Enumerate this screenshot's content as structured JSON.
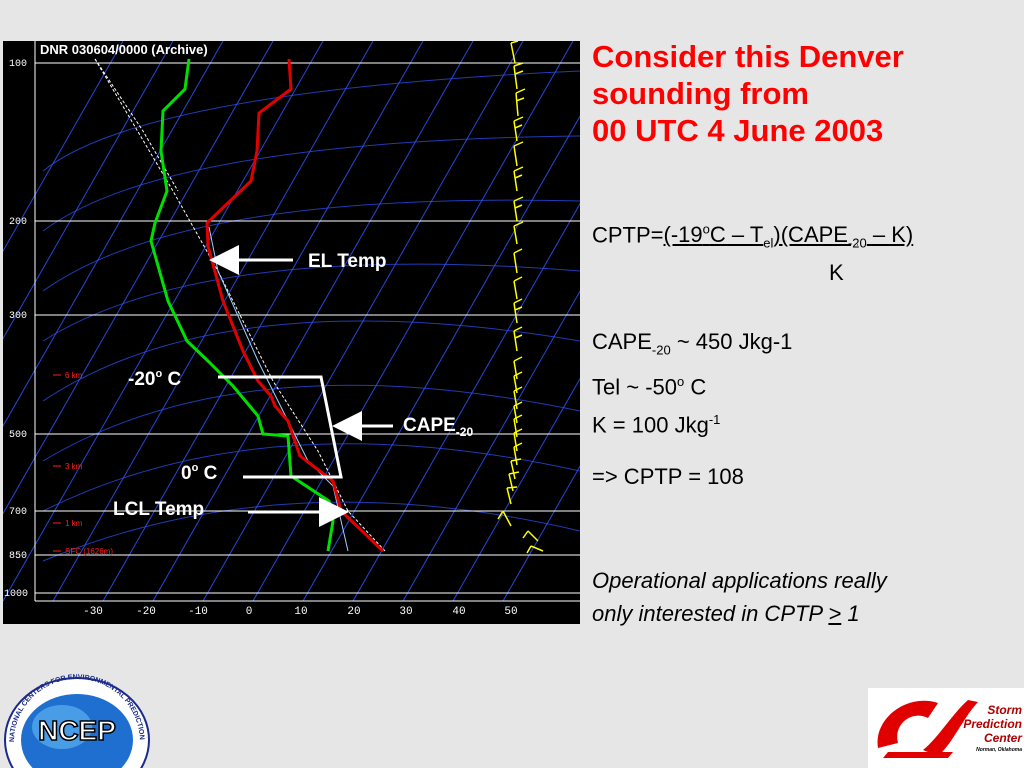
{
  "skewt": {
    "header": "DNR   030604/0000  (Archive)",
    "pressure_labels": [
      "100",
      "200",
      "300",
      "500",
      "700",
      "850",
      "1000"
    ],
    "temp_labels": [
      "-30",
      "-20",
      "-10",
      "0",
      "10",
      "20",
      "30",
      "40",
      "50"
    ],
    "height_labels": [
      "6 km",
      "3 km",
      "1 km",
      "SFC (1626m)"
    ],
    "annotations": {
      "el_temp": "EL Temp",
      "minus20": "-20",
      "minus20_unit": "C",
      "cape": "CAPE",
      "cape_sub": "-20",
      "zero": "0",
      "zero_unit": "C",
      "lcl_temp": "LCL Temp",
      "degree": "o"
    },
    "colors": {
      "temperature": "#e00000",
      "dewpoint": "#00e000",
      "parcel": "#ffffff",
      "isotherm": "#3a60ff",
      "wind_barbs": "#ffff00",
      "height_marks": "#ff2020"
    }
  },
  "slide": {
    "title_lines": [
      "Consider this Denver",
      "sounding from",
      "00 UTC 4 June 2003"
    ],
    "formula": {
      "lhs": "CPTP=",
      "part1": "(-19",
      "deg": "o",
      "part2": "C – T",
      "tel_sub": "el",
      "part3": ")(CAPE",
      "cape_sub": "-20",
      "part4": " – K)",
      "denominator": "K"
    },
    "values": {
      "cape_label": "CAPE",
      "cape_sub": "-20",
      "cape_value": " ~ 450 Jkg-1",
      "tel_text": "Tel ~ -50",
      "tel_deg": "o",
      "tel_unit": " C",
      "k_text": "K = 100 Jkg",
      "k_sup": "-1"
    },
    "result": "=>   CPTP = 108",
    "note_line1": "Operational applications really",
    "note_line2_prefix": "only interested in CPTP ",
    "note_ge": ">",
    "note_line2_suffix": " 1"
  },
  "logos": {
    "ncep_text": "NCEP",
    "ncep_ring": "NATIONAL CENTERS FOR ENVIRONMENTAL PREDICTION",
    "spc_line1": "Storm",
    "spc_line2": "Prediction",
    "spc_line3": "Center",
    "spc_line4": "Norman, Oklahoma"
  }
}
